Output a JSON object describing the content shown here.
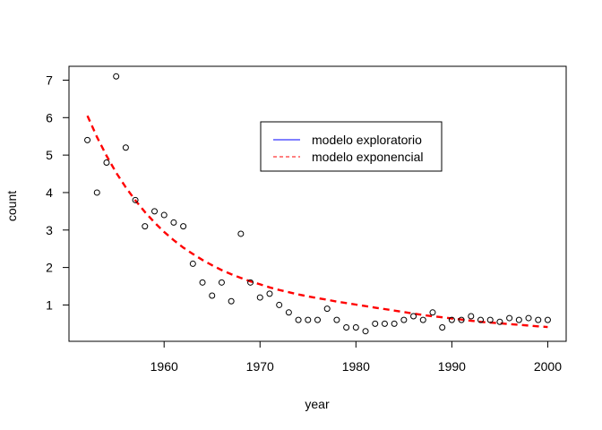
{
  "chart_data": {
    "type": "scatter",
    "title": "",
    "xlabel": "year",
    "ylabel": "count",
    "xlim": [
      1950.08,
      2001.92
    ],
    "ylim": [
      0.03,
      7.37
    ],
    "xticks": [
      1960,
      1970,
      1980,
      1990,
      2000
    ],
    "yticks": [
      1,
      2,
      3,
      4,
      5,
      6,
      7
    ],
    "grid": false,
    "legend": {
      "position": "top-center",
      "entries": [
        {
          "label": "modelo exploratorio",
          "color": "#0000ff",
          "style": "solid"
        },
        {
          "label": "modelo exponencial",
          "color": "#ff0000",
          "style": "dashed"
        }
      ]
    },
    "points": {
      "x": [
        1952,
        1953,
        1954,
        1955,
        1956,
        1957,
        1958,
        1959,
        1960,
        1961,
        1962,
        1963,
        1964,
        1965,
        1966,
        1967,
        1968,
        1969,
        1970,
        1971,
        1972,
        1973,
        1974,
        1975,
        1976,
        1977,
        1978,
        1979,
        1980,
        1981,
        1982,
        1983,
        1984,
        1985,
        1986,
        1987,
        1988,
        1989,
        1990,
        1991,
        1992,
        1993,
        1994,
        1995,
        1996,
        1997,
        1998,
        1999,
        2000
      ],
      "y": [
        5.4,
        4.0,
        4.8,
        7.1,
        5.2,
        3.8,
        3.1,
        3.5,
        3.4,
        3.2,
        3.1,
        2.1,
        1.6,
        1.25,
        1.6,
        1.1,
        2.9,
        1.6,
        1.2,
        1.3,
        1.0,
        0.8,
        0.6,
        0.6,
        0.6,
        0.9,
        0.6,
        0.4,
        0.4,
        0.3,
        0.5,
        0.5,
        0.5,
        0.6,
        0.7,
        0.6,
        0.8,
        0.4,
        0.6,
        0.6,
        0.7,
        0.6,
        0.6,
        0.55,
        0.65,
        0.6,
        0.65,
        0.6,
        0.6
      ]
    },
    "series": [
      {
        "name": "modelo exponencial",
        "color": "#ff0000",
        "style": "dashed",
        "x": [
          1952,
          1953,
          1954,
          1955,
          1956,
          1957,
          1958,
          1959,
          1960,
          1961,
          1962,
          1963,
          1964,
          1965,
          1966,
          1967,
          1968,
          1969,
          1970,
          1971,
          1972,
          1973,
          1974,
          1975,
          1976,
          1977,
          1978,
          1979,
          1980,
          1981,
          1982,
          1983,
          1984,
          1985,
          1986,
          1987,
          1988,
          1989,
          1990,
          1991,
          1992,
          1993,
          1994,
          1995,
          1996,
          1997,
          1998,
          1999,
          2000
        ],
        "y": [
          6.05,
          5.48,
          4.98,
          4.53,
          4.14,
          3.79,
          3.48,
          3.2,
          2.95,
          2.73,
          2.53,
          2.36,
          2.2,
          2.06,
          1.93,
          1.82,
          1.72,
          1.63,
          1.55,
          1.47,
          1.4,
          1.34,
          1.28,
          1.23,
          1.18,
          1.14,
          1.09,
          1.05,
          1.01,
          0.97,
          0.93,
          0.89,
          0.85,
          0.81,
          0.77,
          0.73,
          0.7,
          0.67,
          0.64,
          0.61,
          0.58,
          0.55,
          0.53,
          0.51,
          0.49,
          0.47,
          0.45,
          0.43,
          0.41
        ]
      }
    ]
  }
}
